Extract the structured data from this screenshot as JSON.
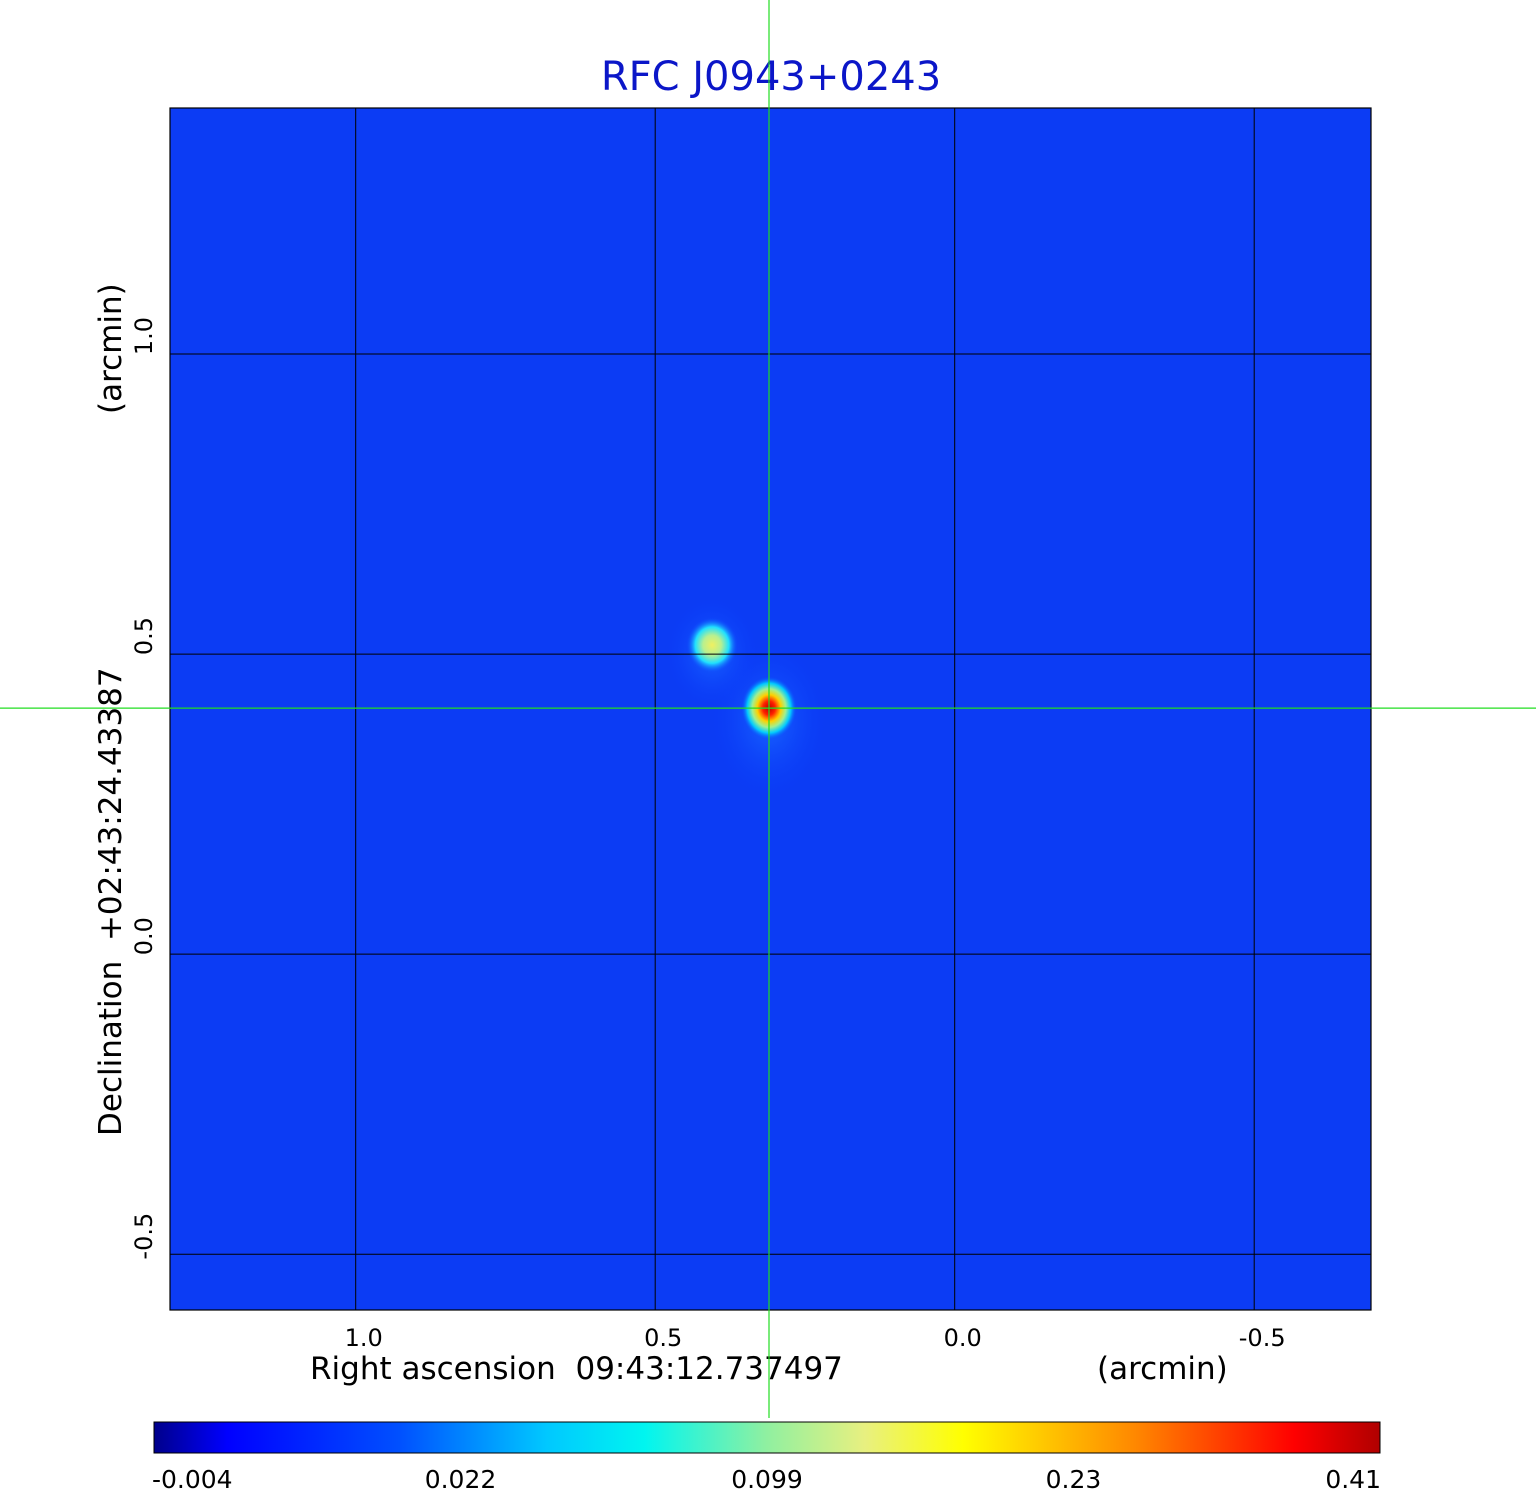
{
  "chart_data": {
    "type": "heatmap",
    "title": "RFC J0943+0243",
    "xlabel": "Right ascension  09:43:12.737497",
    "xunit": "(arcmin)",
    "ylabel": "Declination  +02:43:24.43387",
    "yunit": "(arcmin)",
    "x_ticks": [
      1.0,
      0.5,
      0.0,
      -0.5
    ],
    "x_tick_labels": [
      "1.0",
      "0.5",
      "0.0",
      "-0.5"
    ],
    "y_ticks": [
      1.0,
      0.5,
      0.0,
      -0.5
    ],
    "y_tick_labels": [
      "1.0",
      "0.5",
      "0.0",
      "-0.5"
    ],
    "xlim": [
      1.31,
      -0.695
    ],
    "ylim": [
      -0.593,
      1.41
    ],
    "grid": true,
    "crosshair": {
      "x": 0.31,
      "y": 0.41,
      "color": "#22dd22"
    },
    "sources": [
      {
        "x": 0.31,
        "y": 0.41,
        "peak": 0.41
      },
      {
        "x": 0.405,
        "y": 0.515,
        "peak": 0.14
      }
    ],
    "colorbar": {
      "colormap": "jet",
      "tick_labels": [
        "-0.004",
        "0.022",
        "0.099",
        "0.23",
        "0.41"
      ],
      "tick_fractions": [
        0,
        0.25,
        0.5,
        0.75,
        1.0
      ],
      "min": -0.004,
      "max": 0.41
    }
  }
}
